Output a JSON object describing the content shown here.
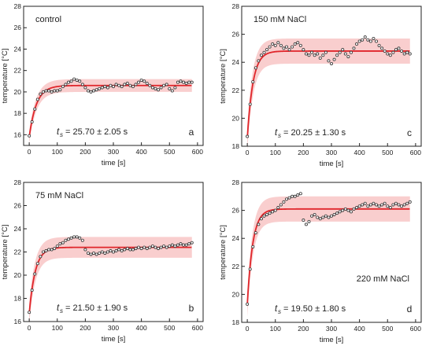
{
  "chart_data": [
    {
      "id": "a",
      "type": "scatter",
      "panel_label": "a",
      "condition": "control",
      "xlabel": "time [s]",
      "ylabel": "temperature [°C]",
      "xlim": [
        -20,
        620
      ],
      "ylim": [
        15,
        28
      ],
      "xticks": [
        0,
        100,
        200,
        300,
        400,
        500,
        600
      ],
      "yticks": [
        16,
        18,
        20,
        22,
        24,
        26,
        28
      ],
      "ts_text": "= 25.70 ± 2.05 s",
      "fit": {
        "T0": 15.8,
        "Tinf": 20.6,
        "tau": 25.7,
        "band": 0.6
      },
      "series": [
        {
          "x": [
            0,
            10,
            20,
            30,
            40,
            50,
            60,
            70,
            80,
            90,
            100,
            110,
            120,
            130,
            140,
            150,
            160,
            170,
            180,
            190,
            200,
            210,
            220,
            230,
            240,
            250,
            260,
            270,
            280,
            290,
            300,
            310,
            320,
            330,
            340,
            350,
            360,
            370,
            380,
            390,
            400,
            410,
            420,
            430,
            440,
            450,
            460,
            470,
            480,
            490,
            500,
            510,
            520,
            530,
            540,
            550,
            560,
            570,
            580
          ],
          "y": [
            15.9,
            17.2,
            18.4,
            19.3,
            19.8,
            20.0,
            20.1,
            20.1,
            20.0,
            20.1,
            20.1,
            20.2,
            20.5,
            20.7,
            20.9,
            21.0,
            21.2,
            21.1,
            21.0,
            20.7,
            20.4,
            20.1,
            20.0,
            20.1,
            20.2,
            20.3,
            20.4,
            20.5,
            20.4,
            20.6,
            20.5,
            20.7,
            20.6,
            20.5,
            20.7,
            20.8,
            20.6,
            20.5,
            20.7,
            20.9,
            21.1,
            21.0,
            20.8,
            20.6,
            20.4,
            20.3,
            20.2,
            20.4,
            20.6,
            20.7,
            20.3,
            20.1,
            20.4,
            20.9,
            21.0,
            20.9,
            20.8,
            20.9,
            20.9
          ]
        }
      ]
    },
    {
      "id": "c",
      "type": "scatter",
      "panel_label": "c",
      "condition": "150 mM NaCl",
      "xlabel": "time [s]",
      "ylabel": "temperature [°C]",
      "xlim": [
        -20,
        620
      ],
      "ylim": [
        18,
        28
      ],
      "xticks": [
        0,
        100,
        200,
        300,
        400,
        500,
        600
      ],
      "yticks": [
        18,
        20,
        22,
        24,
        26,
        28
      ],
      "ts_text": "= 20.25 ± 1.30 s",
      "fit": {
        "T0": 18.6,
        "Tinf": 24.8,
        "tau": 20.25,
        "band": 0.9
      },
      "series": [
        {
          "x": [
            0,
            10,
            20,
            30,
            40,
            50,
            60,
            70,
            80,
            90,
            100,
            110,
            120,
            130,
            140,
            150,
            160,
            170,
            180,
            190,
            200,
            210,
            220,
            230,
            240,
            250,
            260,
            270,
            280,
            290,
            300,
            310,
            320,
            330,
            340,
            350,
            360,
            370,
            380,
            390,
            400,
            410,
            420,
            430,
            440,
            450,
            460,
            470,
            480,
            490,
            500,
            510,
            520,
            530,
            540,
            550,
            560,
            570,
            580
          ],
          "y": [
            18.7,
            21.0,
            22.6,
            23.6,
            24.1,
            24.5,
            24.7,
            24.9,
            25.1,
            25.3,
            25.2,
            25.4,
            25.2,
            25.0,
            25.1,
            24.9,
            25.1,
            25.3,
            25.4,
            25.2,
            24.9,
            24.6,
            24.5,
            24.7,
            24.5,
            24.6,
            24.3,
            24.5,
            24.7,
            24.1,
            23.9,
            24.2,
            24.5,
            24.7,
            24.9,
            24.6,
            24.4,
            24.7,
            25.0,
            25.3,
            25.5,
            25.6,
            25.8,
            25.6,
            25.5,
            25.7,
            25.5,
            25.2,
            25.0,
            24.8,
            24.6,
            24.5,
            24.7,
            24.9,
            25.0,
            24.8,
            24.6,
            24.7,
            24.6
          ]
        }
      ]
    },
    {
      "id": "b",
      "type": "scatter",
      "panel_label": "b",
      "condition": "75 mM NaCl",
      "xlabel": "time [s]",
      "ylabel": "temperature [°C]",
      "xlim": [
        -20,
        620
      ],
      "ylim": [
        16,
        28
      ],
      "xticks": [
        0,
        100,
        200,
        300,
        400,
        500,
        600
      ],
      "yticks": [
        16,
        18,
        20,
        22,
        24,
        26,
        28
      ],
      "ts_text": "= 21.50 ± 1.90 s",
      "fit": {
        "T0": 16.7,
        "Tinf": 22.4,
        "tau": 21.5,
        "band": 0.9
      },
      "series": [
        {
          "x": [
            0,
            10,
            20,
            30,
            40,
            50,
            60,
            70,
            80,
            90,
            100,
            110,
            120,
            130,
            140,
            150,
            160,
            170,
            180,
            190,
            200,
            210,
            220,
            230,
            240,
            250,
            260,
            270,
            280,
            290,
            300,
            310,
            320,
            330,
            340,
            350,
            360,
            370,
            380,
            390,
            400,
            410,
            420,
            430,
            440,
            450,
            460,
            470,
            480,
            490,
            500,
            510,
            520,
            530,
            540,
            550,
            560,
            570,
            580
          ],
          "y": [
            16.8,
            18.7,
            20.1,
            21.0,
            21.6,
            22.0,
            22.1,
            22.2,
            22.2,
            22.3,
            22.5,
            22.7,
            22.8,
            23.0,
            23.1,
            23.2,
            23.3,
            23.3,
            23.2,
            23.0,
            22.2,
            21.9,
            21.8,
            21.9,
            21.8,
            21.9,
            22.0,
            21.9,
            22.0,
            22.1,
            22.0,
            22.1,
            22.2,
            22.1,
            22.2,
            22.3,
            22.2,
            22.2,
            22.3,
            22.4,
            22.3,
            22.4,
            22.3,
            22.4,
            22.5,
            22.4,
            22.3,
            22.4,
            22.5,
            22.4,
            22.5,
            22.6,
            22.5,
            22.6,
            22.7,
            22.6,
            22.6,
            22.7,
            22.8
          ]
        }
      ]
    },
    {
      "id": "d",
      "type": "scatter",
      "panel_label": "d",
      "condition": "220 mM NaCl",
      "xlabel": "time [s]",
      "ylabel": "temperature [°C]",
      "xlim": [
        -20,
        620
      ],
      "ylim": [
        18,
        28
      ],
      "xticks": [
        0,
        100,
        200,
        300,
        400,
        500,
        600
      ],
      "yticks": [
        18,
        20,
        22,
        24,
        26,
        28
      ],
      "ts_text": "= 19.50 ± 1.80 s",
      "fit": {
        "T0": 19.3,
        "Tinf": 26.1,
        "tau": 19.5,
        "band": 0.9
      },
      "series": [
        {
          "x": [
            0,
            10,
            20,
            30,
            40,
            50,
            60,
            70,
            80,
            90,
            100,
            110,
            120,
            130,
            140,
            150,
            160,
            170,
            180,
            190,
            200,
            210,
            220,
            230,
            240,
            250,
            260,
            270,
            280,
            290,
            300,
            310,
            320,
            330,
            340,
            350,
            360,
            370,
            380,
            390,
            400,
            410,
            420,
            430,
            440,
            450,
            460,
            470,
            480,
            490,
            500,
            510,
            520,
            530,
            540,
            550,
            560,
            570,
            580
          ],
          "y": [
            19.3,
            21.8,
            23.4,
            24.4,
            25.0,
            25.4,
            25.6,
            25.7,
            25.8,
            25.9,
            26.0,
            26.2,
            26.4,
            26.6,
            26.8,
            26.9,
            27.0,
            27.0,
            27.1,
            27.2,
            25.3,
            25.0,
            25.2,
            25.6,
            25.7,
            25.5,
            25.4,
            25.5,
            25.6,
            25.5,
            25.6,
            25.7,
            25.8,
            25.9,
            26.0,
            26.1,
            26.0,
            25.9,
            26.1,
            26.2,
            26.3,
            26.4,
            26.5,
            26.3,
            26.4,
            26.5,
            26.4,
            26.3,
            26.4,
            26.5,
            26.3,
            26.2,
            26.4,
            26.5,
            26.4,
            26.3,
            26.4,
            26.5,
            26.6
          ]
        }
      ]
    }
  ],
  "colors": {
    "fit_line": "#e0262b",
    "band": "#f7c2c2",
    "points": "#333333",
    "axis": "#222222"
  }
}
